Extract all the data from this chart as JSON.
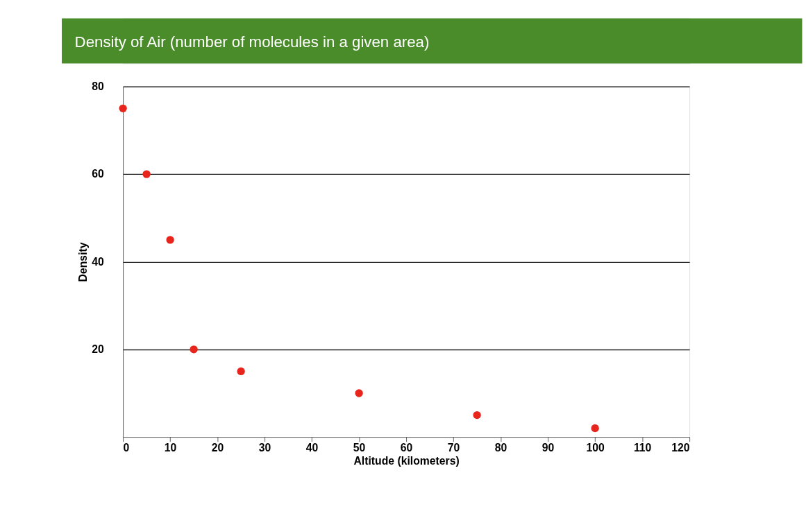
{
  "chart_data": {
    "type": "scatter",
    "title": "Density of Air (number of molecules in a given area)",
    "xlabel": "Altitude (kilometers)",
    "ylabel": "Density",
    "x": [
      0,
      5,
      10,
      15,
      25,
      50,
      75,
      100
    ],
    "series": [
      {
        "color": "#e8251c",
        "values": [
          75,
          60,
          45,
          20,
          15,
          10,
          5,
          2
        ]
      }
    ],
    "xlim": [
      0,
      120
    ],
    "xticks": [
      0,
      10,
      20,
      30,
      40,
      50,
      60,
      70,
      80,
      90,
      100,
      110,
      120
    ],
    "ylim": [
      0,
      80
    ],
    "yticks": [
      20,
      40,
      60,
      80
    ],
    "grid": "y",
    "marker": "circle"
  }
}
